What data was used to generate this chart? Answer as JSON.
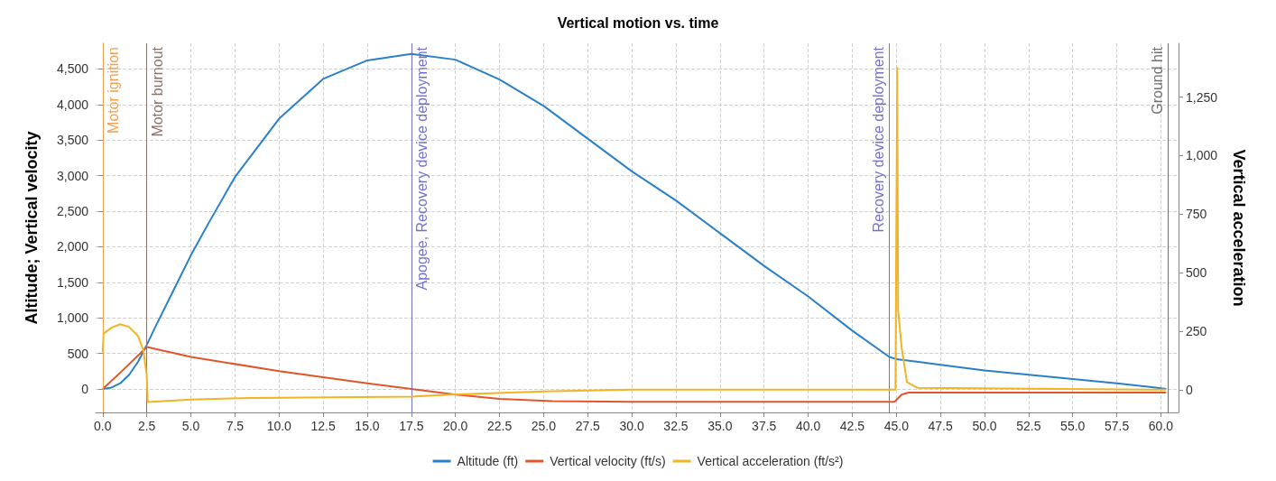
{
  "chart_data": {
    "type": "line",
    "title": "Vertical motion vs. time",
    "ylabel": "Altitude; Vertical velocity",
    "y2label": "Vertical acceleration",
    "xlim": [
      -0.4,
      61.0
    ],
    "xticks": [
      {
        "value": 0,
        "label": "0.0"
      },
      {
        "value": 2.5,
        "label": "2.5"
      },
      {
        "value": 5,
        "label": "5.0"
      },
      {
        "value": 7.5,
        "label": "7.5"
      },
      {
        "value": 10,
        "label": "10.0"
      },
      {
        "value": 12.5,
        "label": "12.5"
      },
      {
        "value": 15,
        "label": "15.0"
      },
      {
        "value": 17.5,
        "label": "17.5"
      },
      {
        "value": 20,
        "label": "20.0"
      },
      {
        "value": 22.5,
        "label": "22.5"
      },
      {
        "value": 25,
        "label": "25.0"
      },
      {
        "value": 27.5,
        "label": "27.5"
      },
      {
        "value": 30,
        "label": "30.0"
      },
      {
        "value": 32.5,
        "label": "32.5"
      },
      {
        "value": 35,
        "label": "35.0"
      },
      {
        "value": 37.5,
        "label": "37.5"
      },
      {
        "value": 40,
        "label": "40.0"
      },
      {
        "value": 42.5,
        "label": "42.5"
      },
      {
        "value": 45,
        "label": "45.0"
      },
      {
        "value": 47.5,
        "label": "47.5"
      },
      {
        "value": 50,
        "label": "50.0"
      },
      {
        "value": 52.5,
        "label": "52.5"
      },
      {
        "value": 55,
        "label": "55.0"
      },
      {
        "value": 57.5,
        "label": "57.5"
      },
      {
        "value": 60,
        "label": "60.0"
      }
    ],
    "ylim": [
      -330,
      4860
    ],
    "yticks": [
      0,
      500,
      {
        "value": 1000,
        "label": "1,000"
      },
      {
        "value": 1500,
        "label": "1,500"
      },
      {
        "value": 2000,
        "label": "2,000"
      },
      {
        "value": 2500,
        "label": "2,500"
      },
      {
        "value": 3000,
        "label": "3,000"
      },
      {
        "value": 3500,
        "label": "3,500"
      },
      {
        "value": 4000,
        "label": "4,000"
      },
      {
        "value": 4500,
        "label": "4,500"
      }
    ],
    "y2lim": [
      -97,
      1480
    ],
    "y2ticks": [
      0,
      250,
      500,
      750,
      {
        "value": 1000,
        "label": "1,000"
      },
      {
        "value": 1250,
        "label": "1,250"
      }
    ],
    "grid": true,
    "legend": "bottom",
    "marker": "none",
    "line_style": "solid",
    "series": [
      {
        "name": "Altitude (ft)",
        "color": "#2a80c8",
        "x": [
          0,
          0.5,
          1,
          1.5,
          2,
          2.5,
          3,
          4,
          5,
          6,
          7.5,
          10,
          12.5,
          15,
          17.5,
          20,
          22.5,
          25,
          27.5,
          30,
          32.5,
          35,
          37.5,
          40,
          42.5,
          44.6,
          45,
          47.5,
          50,
          52.5,
          55,
          57.5,
          60,
          60.3
        ],
        "values": [
          0,
          20,
          80,
          200,
          380,
          620,
          880,
          1380,
          1880,
          2330,
          2980,
          3800,
          4360,
          4620,
          4710,
          4630,
          4350,
          3980,
          3520,
          3060,
          2650,
          2190,
          1730,
          1300,
          820,
          450,
          420,
          340,
          260,
          200,
          140,
          80,
          10,
          0
        ]
      },
      {
        "name": "Vertical velocity (ft/s)",
        "color": "#e0562c",
        "x": [
          0,
          1,
          2,
          2.5,
          5,
          10,
          15,
          17.5,
          20,
          22.5,
          25.5,
          30,
          44.9,
          45.3,
          45.7,
          60.3
        ],
        "values": [
          0,
          230,
          470,
          590,
          450,
          250,
          80,
          0,
          -80,
          -140,
          -170,
          -180,
          -180,
          -80,
          -50,
          -50
        ]
      },
      {
        "name": "Vertical acceleration (ft/s²)",
        "color": "#f2b324",
        "axis": "y2",
        "x": [
          0,
          0.05,
          0.5,
          1,
          1.5,
          2,
          2.3,
          2.5,
          2.55,
          5,
          8.5,
          17.5,
          20,
          25,
          30,
          44.95,
          45.05,
          45.1,
          45.3,
          45.6,
          46.2,
          60.3
        ],
        "values": [
          160,
          240,
          265,
          280,
          268,
          230,
          170,
          60,
          -53,
          -42,
          -35,
          -30,
          -20,
          -7,
          0,
          0,
          1375,
          340,
          180,
          33,
          8,
          0
        ]
      }
    ],
    "ref_lines": [
      {
        "axis": "x",
        "value": 0,
        "label": "Motor ignition",
        "color": "#f0a050"
      },
      {
        "axis": "x",
        "value": 2.5,
        "label": "Motor burnout",
        "color": "#8a7366"
      },
      {
        "axis": "x",
        "value": 17.5,
        "label": "Apogee, Recovery device deployment",
        "color": "#7272c8"
      },
      {
        "axis": "x",
        "value": 44.6,
        "label": "Recovery device deployment",
        "color": "#7272c8"
      },
      {
        "axis": "x",
        "value": 60.4,
        "label": "Ground hit",
        "color": "#707070"
      }
    ]
  }
}
